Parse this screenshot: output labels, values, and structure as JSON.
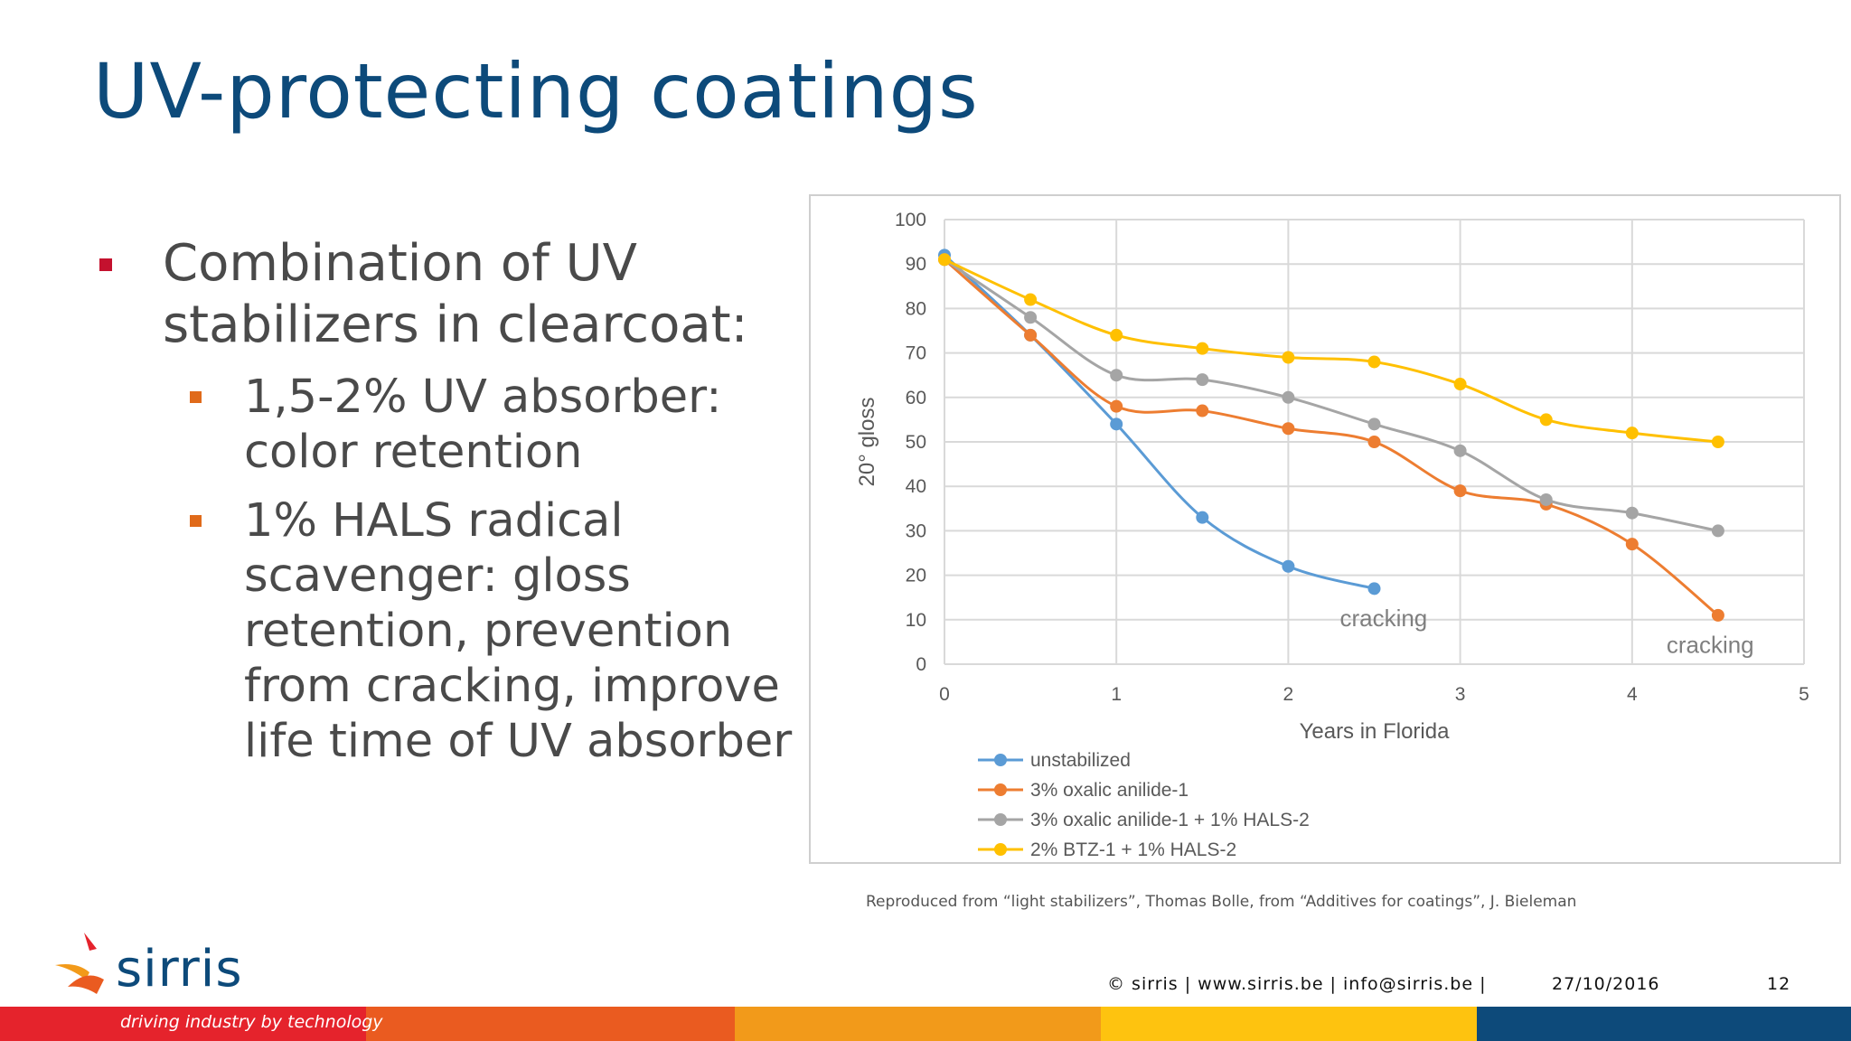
{
  "slide": {
    "title": "UV-protecting coatings",
    "bullet_main": "Combination of UV stabilizers in clearcoat:",
    "sub_bullets": [
      "1,5-2% UV absorber: color retention",
      "1% HALS radical scavenger: gloss retention, prevention from cracking, improve life time of UV absorber"
    ],
    "caption": "Reproduced from “light stabilizers”, Thomas Bolle, from “Additives for coatings”, J. Bieleman"
  },
  "footer": {
    "brand": "sirris",
    "tagline": "driving industry by technology",
    "contact": "© sirris | www.sirris.be | info@sirris.be |",
    "date": "27/10/2016",
    "page": "12"
  },
  "colors": {
    "title": "#0d4a7a",
    "bullet_main": "#c4112e",
    "bullet_sub": "#e06a1a",
    "stripes": [
      "#e5232c",
      "#ea5b20",
      "#f29a1a",
      "#fec30f",
      "#0d4a7a"
    ]
  },
  "chart_data": {
    "type": "line",
    "xlabel": "Years in Florida",
    "ylabel": "20° gloss",
    "xlim": [
      0,
      5
    ],
    "ylim": [
      0,
      100
    ],
    "xticks": [
      0,
      1,
      2,
      3,
      4,
      5
    ],
    "yticks": [
      0,
      10,
      20,
      30,
      40,
      50,
      60,
      70,
      80,
      90,
      100
    ],
    "grid": true,
    "legend_position": "bottom-left",
    "series": [
      {
        "name": "unstabilized",
        "color": "#5b9bd5",
        "x": [
          0,
          0.5,
          1,
          1.5,
          2,
          2.5
        ],
        "y": [
          92,
          74,
          54,
          33,
          22,
          17
        ]
      },
      {
        "name": "3% oxalic anilide-1",
        "color": "#ed7d31",
        "x": [
          0,
          0.5,
          1,
          1.5,
          2,
          2.5,
          3,
          3.5,
          4,
          4.5
        ],
        "y": [
          91,
          74,
          58,
          57,
          53,
          50,
          39,
          36,
          27,
          11
        ]
      },
      {
        "name": "3% oxalic anilide-1 + 1% HALS-2",
        "color": "#a5a5a5",
        "x": [
          0,
          0.5,
          1,
          1.5,
          2,
          2.5,
          3,
          3.5,
          4,
          4.5
        ],
        "y": [
          91,
          78,
          65,
          64,
          60,
          54,
          48,
          37,
          34,
          30
        ]
      },
      {
        "name": "2% BTZ-1 + 1% HALS-2",
        "color": "#ffc000",
        "x": [
          0,
          0.5,
          1,
          1.5,
          2,
          2.5,
          3,
          3.5,
          4,
          4.5
        ],
        "y": [
          91,
          82,
          74,
          71,
          69,
          68,
          63,
          55,
          52,
          50
        ]
      }
    ],
    "annotations": [
      {
        "text": "cracking",
        "x": 2.3,
        "y": 10
      },
      {
        "text": "cracking",
        "x": 4.2,
        "y": 4
      }
    ]
  }
}
